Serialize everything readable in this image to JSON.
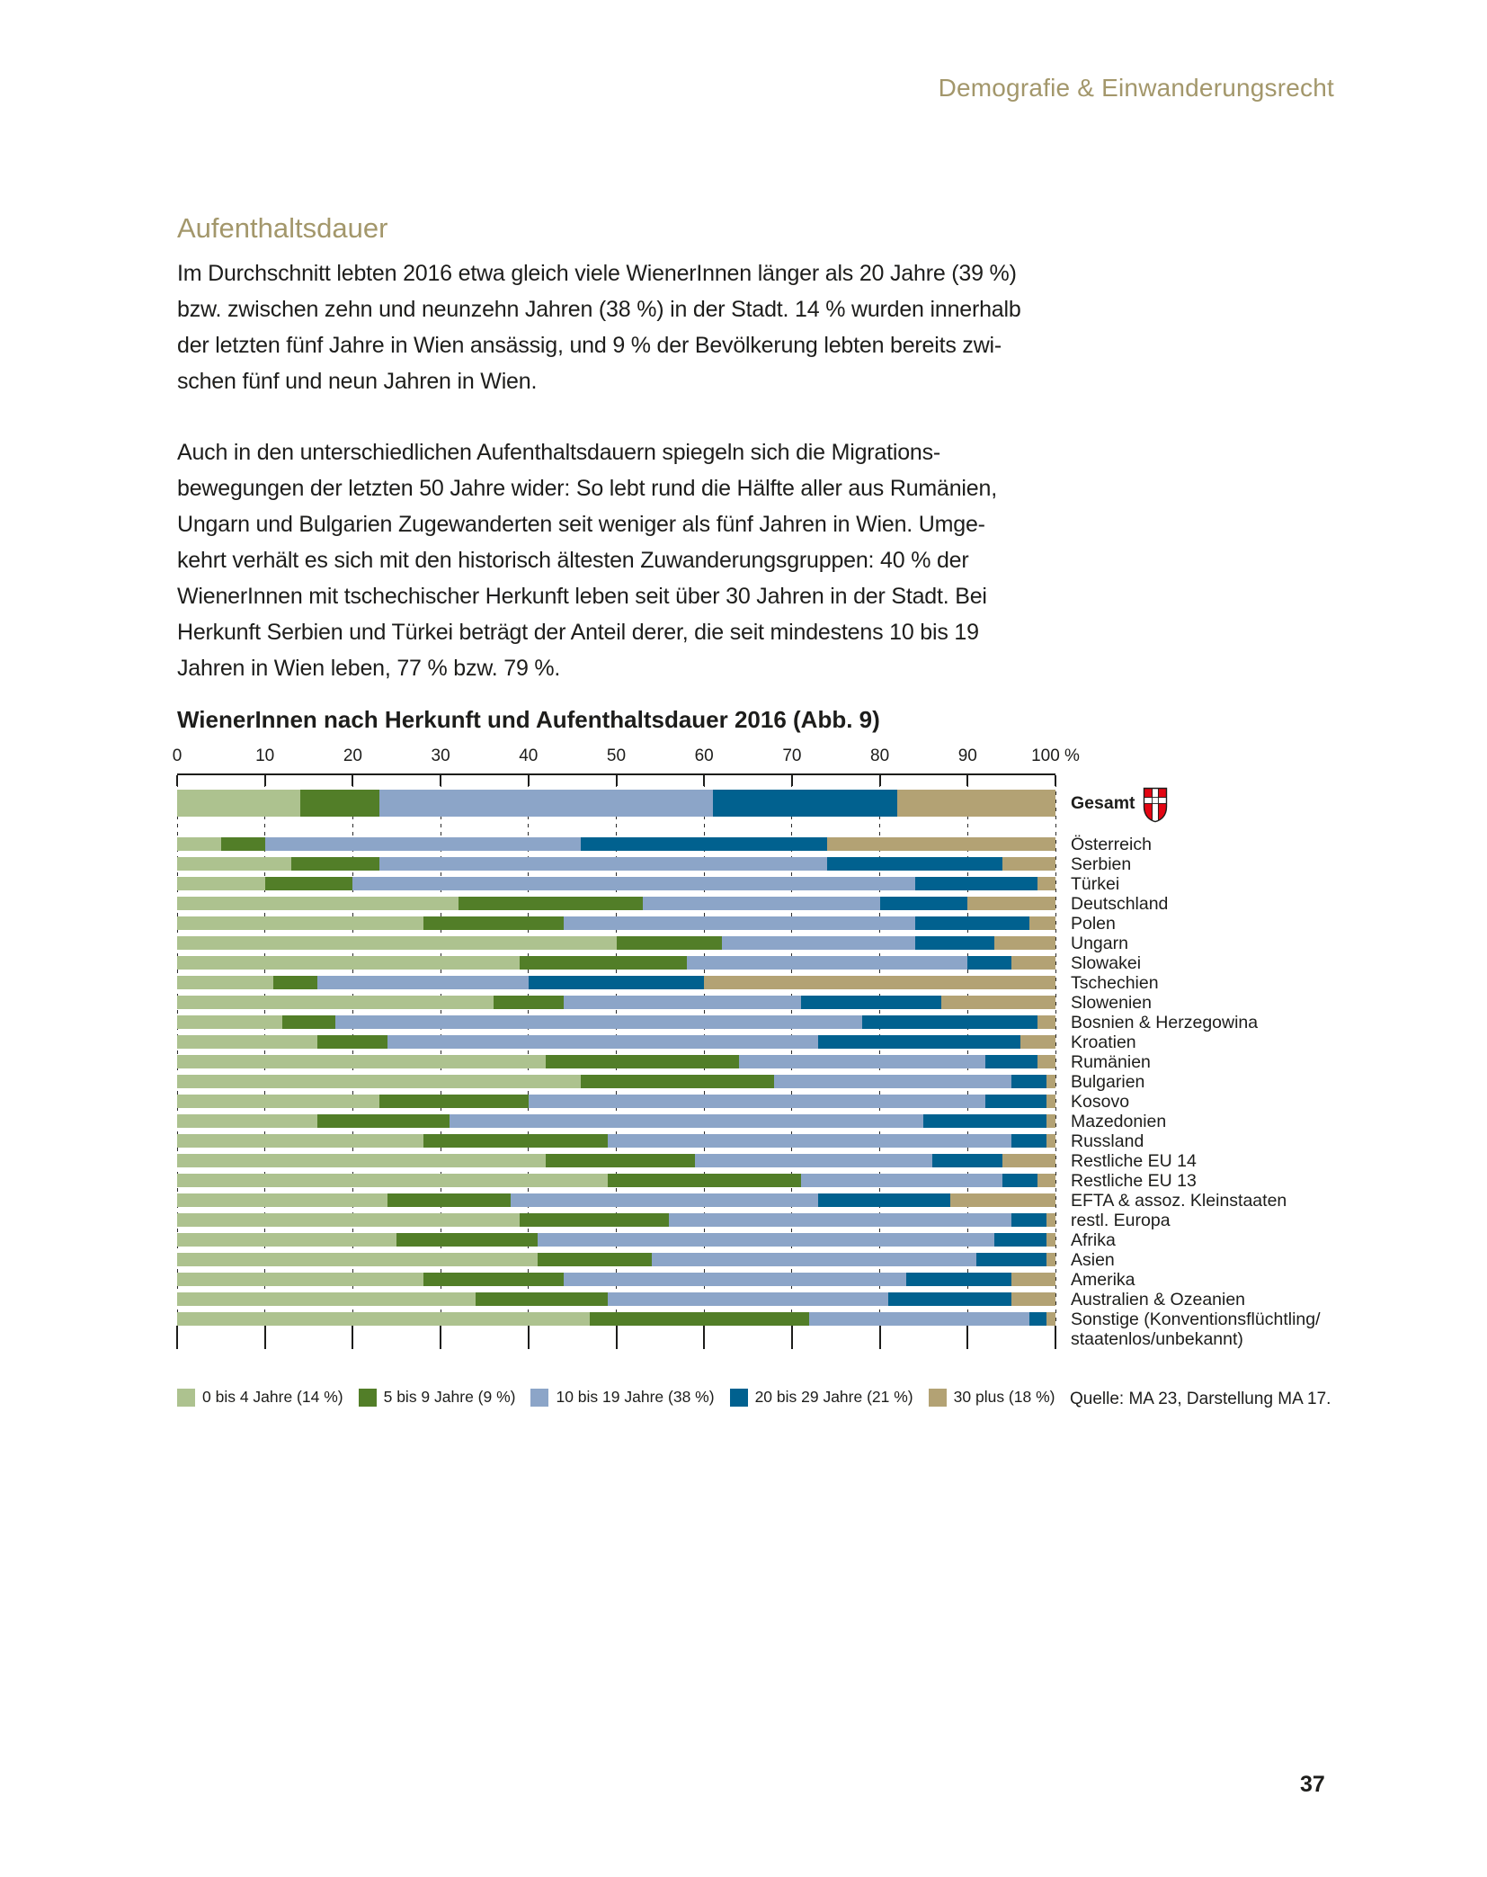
{
  "page": {
    "header": "Demografie & Einwanderungsrecht",
    "page_number": "37",
    "accent_color": "#a3976b"
  },
  "section": {
    "heading": "Aufenthaltsdauer",
    "paragraph1": "Im Durchschnitt lebten 2016 etwa gleich viele WienerInnen länger als 20 Jahre (39 %)\nbzw. zwischen zehn und neunzehn Jahren (38 %) in der Stadt. 14 % wurden innerhalb\nder letzten fünf Jahre in Wien ansässig, und 9 % der Bevölkerung lebten bereits zwi-\nschen fünf und neun Jahren in Wien.",
    "paragraph2": "Auch in den unterschiedlichen Aufenthaltsdauern spiegeln sich die Migrations-\nbewegungen der letzten 50 Jahre wider: So lebt rund die Hälfte aller aus Rumänien,\nUngarn und Bulgarien Zugewanderten seit weniger als fünf Jahren in Wien. Umge-\nkehrt verhält es sich mit den historisch ältesten Zuwanderungsgruppen: 40 % der\nWienerInnen mit tschechischer Herkunft leben seit über 30 Jahren in der Stadt. Bei\nHerkunft Serbien und Türkei beträgt der Anteil derer, die seit mindestens 10 bis 19\nJahren in Wien leben, 77 % bzw. 79 %."
  },
  "chart_data": {
    "type": "bar",
    "stacked": true,
    "orientation": "horizontal",
    "title": "WienerInnen nach Herkunft und Aufenthaltsdauer 2016 (Abb. 9)",
    "unit": "%",
    "x_axis": {
      "min": 0,
      "max": 100,
      "tick_values": [
        0,
        10,
        20,
        30,
        40,
        50,
        60,
        70,
        80,
        90,
        100
      ],
      "tick_labels": [
        "0",
        "10",
        "20",
        "30",
        "40",
        "50",
        "60",
        "70",
        "80",
        "90",
        "100 %"
      ],
      "gridlines": "dashed"
    },
    "total_row": "Gesamt",
    "total_icon": "vienna-coat-of-arms",
    "categories": [
      "Gesamt",
      "Österreich",
      "Serbien",
      "Türkei",
      "Deutschland",
      "Polen",
      "Ungarn",
      "Slowakei",
      "Tschechien",
      "Slowenien",
      "Bosnien & Herzegowina",
      "Kroatien",
      "Rumänien",
      "Bulgarien",
      "Kosovo",
      "Mazedonien",
      "Russland",
      "Restliche EU 14",
      "Restliche EU 13",
      "EFTA & assoz. Kleinstaaten",
      "restl. Europa",
      "Afrika",
      "Asien",
      "Amerika",
      "Australien & Ozeanien",
      "Sonstige (Konventionsflüchtling/\nstaatenlos/unbekannt)"
    ],
    "series": [
      {
        "name": "0 bis 4 Jahre",
        "color": "#adc28f",
        "values": [
          14,
          5,
          13,
          10,
          32,
          28,
          50,
          39,
          11,
          36,
          12,
          16,
          42,
          46,
          23,
          16,
          28,
          42,
          49,
          24,
          39,
          25,
          41,
          28,
          34,
          47
        ]
      },
      {
        "name": "5 bis 9 Jahre",
        "color": "#527e28",
        "values": [
          9,
          5,
          10,
          10,
          21,
          16,
          12,
          19,
          5,
          8,
          6,
          8,
          22,
          22,
          17,
          15,
          21,
          17,
          22,
          14,
          17,
          16,
          13,
          16,
          15,
          25
        ]
      },
      {
        "name": "10 bis 19 Jahre",
        "color": "#8ca5c8",
        "values": [
          38,
          36,
          51,
          64,
          27,
          40,
          22,
          32,
          24,
          27,
          60,
          49,
          28,
          27,
          52,
          54,
          46,
          27,
          23,
          35,
          39,
          52,
          37,
          39,
          32,
          25
        ]
      },
      {
        "name": "20 bis 29 Jahre",
        "color": "#01618f",
        "values": [
          21,
          28,
          20,
          14,
          10,
          13,
          9,
          5,
          20,
          16,
          20,
          23,
          6,
          4,
          7,
          14,
          4,
          8,
          4,
          15,
          4,
          6,
          8,
          12,
          14,
          2
        ]
      },
      {
        "name": "30 plus",
        "color": "#b3a274",
        "values": [
          18,
          26,
          6,
          2,
          10,
          3,
          7,
          5,
          40,
          13,
          2,
          4,
          2,
          1,
          1,
          1,
          1,
          6,
          2,
          12,
          1,
          1,
          1,
          5,
          5,
          1
        ]
      }
    ],
    "legend": [
      {
        "label": "0 bis 4 Jahre (14 %)",
        "color": "#adc28f"
      },
      {
        "label": "5 bis 9 Jahre (9 %)",
        "color": "#527e28"
      },
      {
        "label": "10 bis 19 Jahre (38 %)",
        "color": "#8ca5c8"
      },
      {
        "label": "20 bis 29 Jahre (21 %)",
        "color": "#01618f"
      },
      {
        "label": "30 plus (18 %)",
        "color": "#b3a274"
      }
    ],
    "legend_position": "bottom",
    "source": "Quelle: MA 23, Darstellung MA 17."
  }
}
